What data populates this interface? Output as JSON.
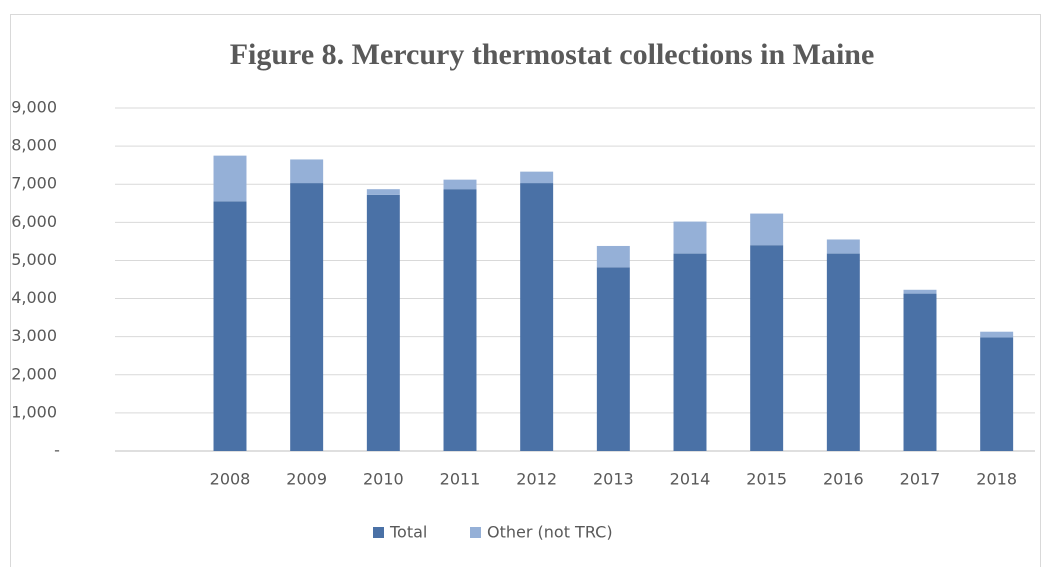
{
  "chart_data": {
    "type": "stacked_bar",
    "title": "Figure 8. Mercury thermostat collections in Maine",
    "categories": [
      null,
      "2008",
      "2009",
      "2010",
      "2011",
      "2012",
      "2013",
      "2014",
      "2015",
      "2016",
      "2017",
      "2018"
    ],
    "series": [
      {
        "name": "Total",
        "color": "#4a71a6",
        "values": [
          null,
          6550,
          7030,
          6720,
          6870,
          7030,
          4820,
          5180,
          5400,
          5180,
          4130,
          2980
        ]
      },
      {
        "name": "Other (not TRC)",
        "color": "#95b0d7",
        "values": [
          null,
          1200,
          620,
          150,
          250,
          300,
          560,
          840,
          830,
          370,
          100,
          150
        ]
      }
    ],
    "ylim": [
      0,
      9000
    ],
    "yticks": [
      {
        "value": 0,
        "label": "-"
      },
      {
        "value": 1000,
        "label": "1,000"
      },
      {
        "value": 2000,
        "label": "2,000"
      },
      {
        "value": 3000,
        "label": "3,000"
      },
      {
        "value": 4000,
        "label": "4,000"
      },
      {
        "value": 5000,
        "label": "5,000"
      },
      {
        "value": 6000,
        "label": "6,000"
      },
      {
        "value": 7000,
        "label": "7,000"
      },
      {
        "value": 8000,
        "label": "8,000"
      },
      {
        "value": 9000,
        "label": "9,000"
      }
    ],
    "grid": true,
    "legend": "bottom"
  }
}
